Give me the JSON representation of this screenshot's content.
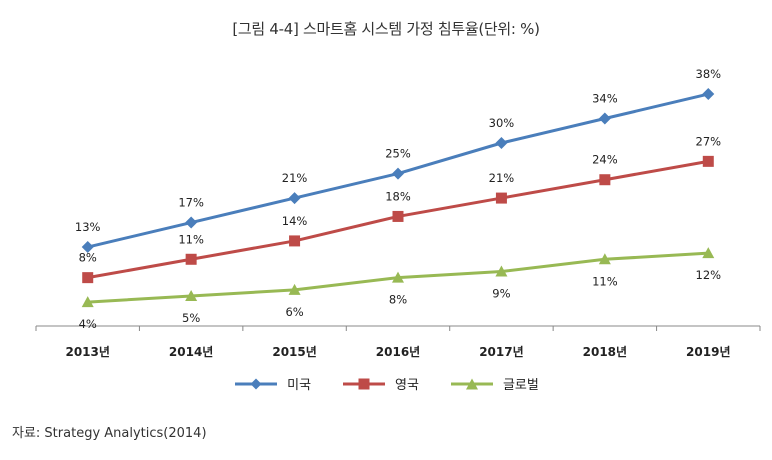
{
  "title": "[그림 4-4] 스마트홈 시스템 가정 침투율(단위: %)",
  "source": "자료: Strategy Analytics(2014)",
  "chart_data": {
    "type": "line",
    "categories": [
      "2013년",
      "2014년",
      "2015년",
      "2016년",
      "2017년",
      "2018년",
      "2019년"
    ],
    "ylim": [
      0,
      40
    ],
    "grid": false,
    "legend_position": "bottom",
    "series": [
      {
        "name": "미국",
        "values": [
          13,
          17,
          21,
          25,
          30,
          34,
          38
        ],
        "labels": [
          "13%",
          "17%",
          "21%",
          "25%",
          "30%",
          "34%",
          "38%"
        ],
        "color": "#4a7ebb",
        "marker": "diamond",
        "label_pos": "above"
      },
      {
        "name": "영국",
        "values": [
          8,
          11,
          14,
          18,
          21,
          24,
          27
        ],
        "labels": [
          "8%",
          "11%",
          "14%",
          "18%",
          "21%",
          "24%",
          "27%"
        ],
        "color": "#be4b48",
        "marker": "square",
        "label_pos": "above"
      },
      {
        "name": "글로벌",
        "values": [
          4,
          5,
          6,
          8,
          9,
          11,
          12
        ],
        "labels": [
          "4%",
          "5%",
          "6%",
          "8%",
          "9%",
          "11%",
          "12%"
        ],
        "color": "#98b954",
        "marker": "triangle",
        "label_pos": "below"
      }
    ]
  }
}
